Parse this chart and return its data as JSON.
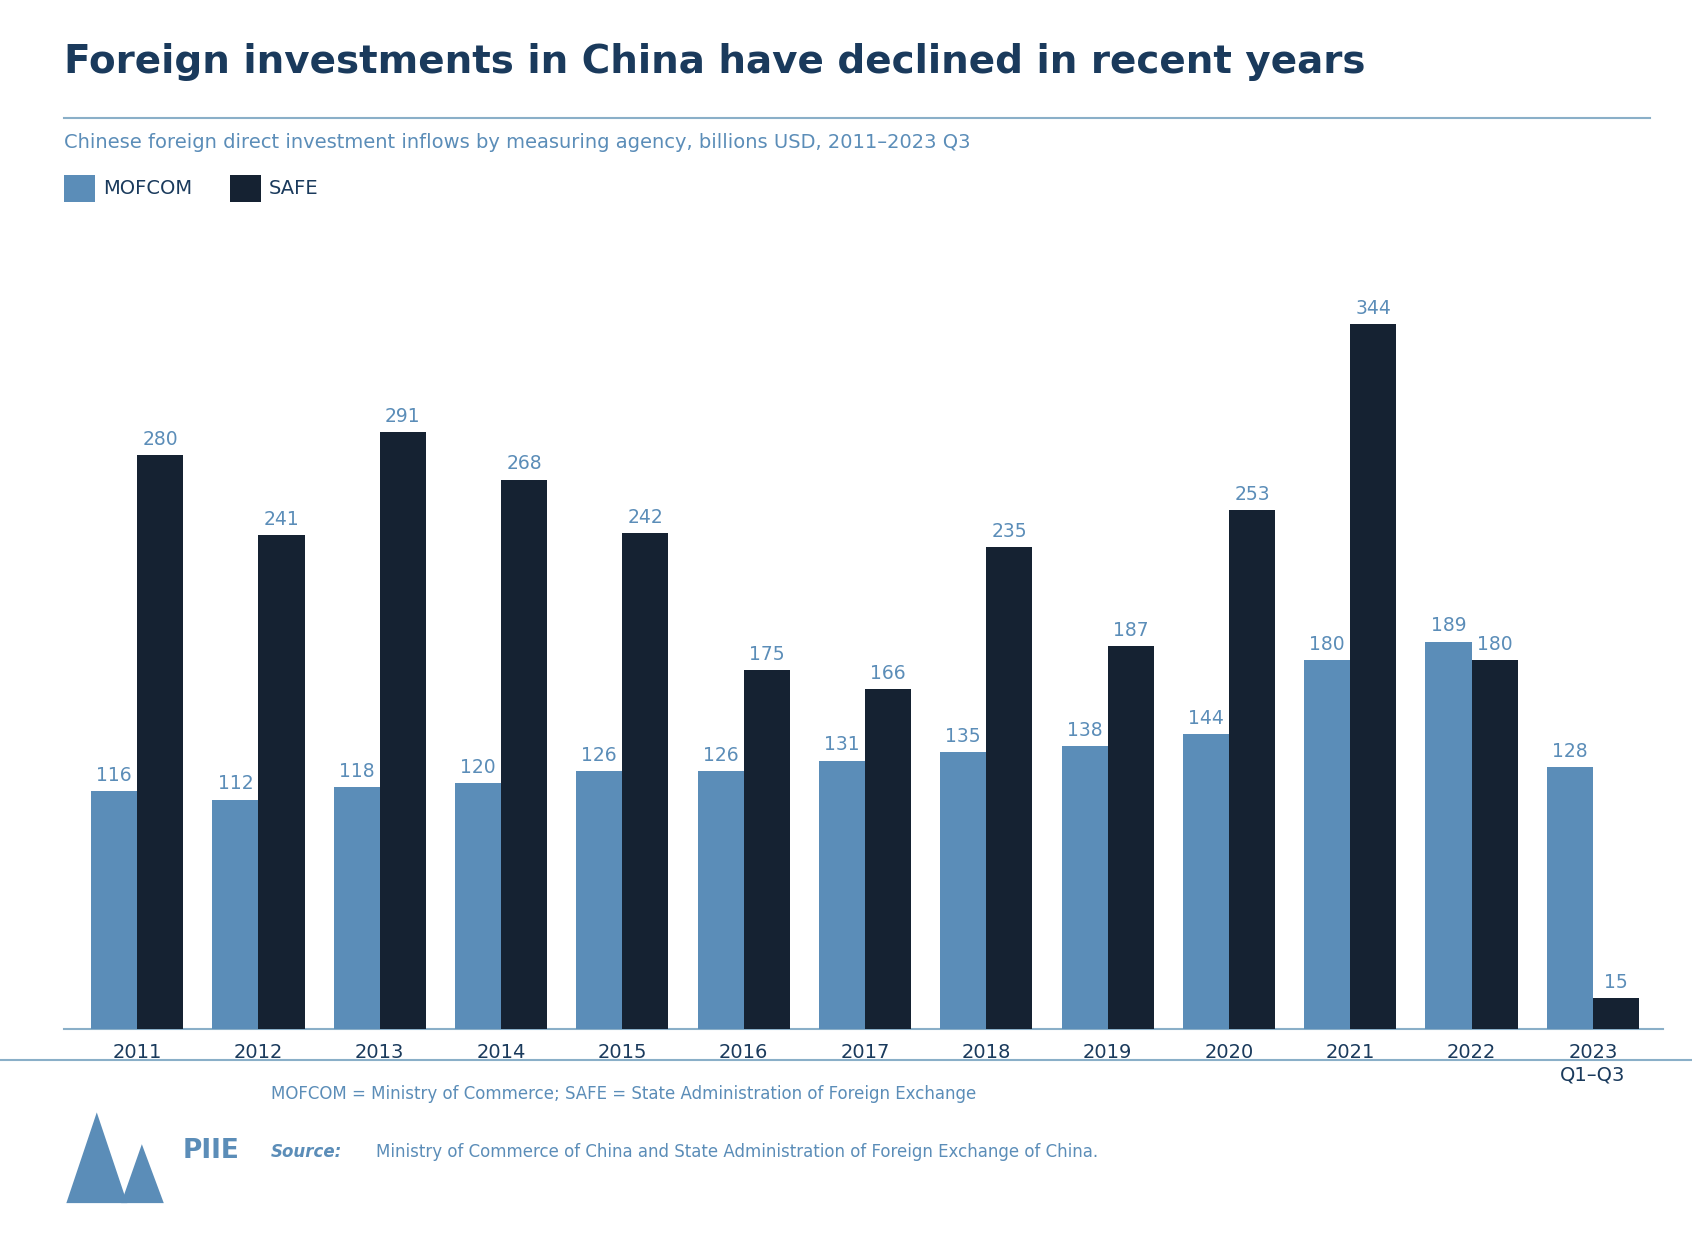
{
  "title": "Foreign investments in China have declined in recent years",
  "subtitle": "Chinese foreign direct investment inflows by measuring agency, billions USD, 2011–2023 Q3",
  "years": [
    "2011",
    "2012",
    "2013",
    "2014",
    "2015",
    "2016",
    "2017",
    "2018",
    "2019",
    "2020",
    "2021",
    "2022",
    "2023\nQ1–Q3"
  ],
  "mofcom": [
    116,
    112,
    118,
    120,
    126,
    126,
    131,
    135,
    138,
    144,
    180,
    189,
    128
  ],
  "safe": [
    280,
    241,
    291,
    268,
    242,
    175,
    166,
    235,
    187,
    253,
    344,
    180,
    15
  ],
  "mofcom_color": "#5b8db8",
  "safe_color": "#152232",
  "title_color": "#1a3a5c",
  "label_color": "#5b8db8",
  "axis_color": "#8aafc8",
  "legend_mofcom": "MOFCOM",
  "legend_safe": "SAFE",
  "footer_note": "MOFCOM = Ministry of Commerce; SAFE = State Administration of Foreign Exchange",
  "footer_source": "Ministry of Commerce of China and State Administration of Foreign Exchange of China.",
  "background_color": "#ffffff",
  "ylim": [
    0,
    390
  ],
  "bar_width": 0.38
}
